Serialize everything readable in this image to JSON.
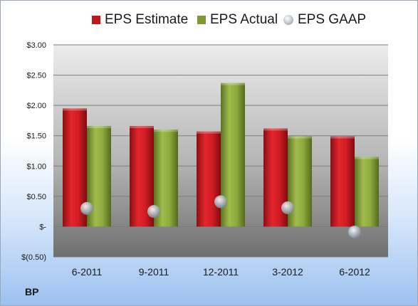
{
  "chart_data": {
    "type": "bar",
    "categories": [
      "6-2011",
      "9-2011",
      "12-2011",
      "3-2012",
      "6-2012"
    ],
    "series": [
      {
        "name": "EPS Estimate",
        "values": [
          1.95,
          1.66,
          1.57,
          1.62,
          1.49
        ],
        "color": "#c0161c",
        "kind": "bar"
      },
      {
        "name": "EPS Actual",
        "values": [
          1.66,
          1.6,
          2.37,
          1.49,
          1.15
        ],
        "color": "#7f9a34",
        "kind": "bar"
      },
      {
        "name": "EPS GAAP",
        "values": [
          0.3,
          0.25,
          0.41,
          0.31,
          -0.09
        ],
        "color": "#b8bec8",
        "kind": "marker"
      }
    ],
    "ylim": [
      -0.5,
      3.0
    ],
    "yticks": [
      -0.5,
      0,
      0.5,
      1.0,
      1.5,
      2.0,
      2.5,
      3.0
    ],
    "ytick_labels": [
      "$(0.50)",
      "$-",
      "$0.50",
      "$1.00",
      "$1.50",
      "$2.00",
      "$2.50",
      "$3.00"
    ],
    "grid": true,
    "legend_position": "top"
  },
  "legend": {
    "estimate": "EPS Estimate",
    "actual": "EPS Actual",
    "gaap": "EPS GAAP"
  },
  "company": "BP"
}
